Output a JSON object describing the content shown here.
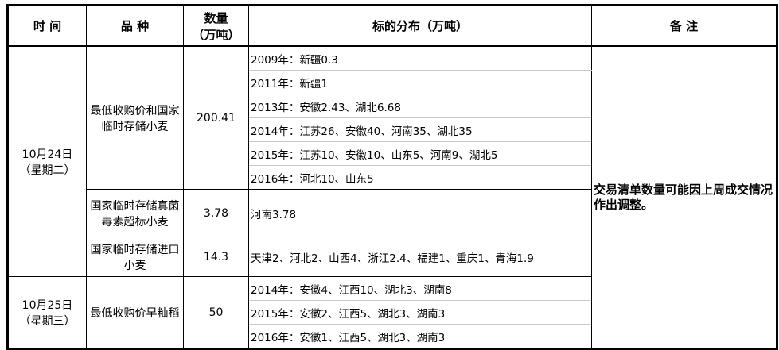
{
  "headers": {
    "time": "时 间",
    "variety": "品 种",
    "qty": "数量\n（万吨）",
    "dist": "标的分布（万吨）",
    "note": "备 注"
  },
  "groups": [
    {
      "date": "10月24日",
      "weekday": "（星期二）",
      "items": [
        {
          "variety": "最低收购价和国家临时存储小麦",
          "qty": "200.41",
          "dist": [
            "2009年：新疆0.3",
            "2011年：新疆1",
            "2013年：安徽2.43、湖北6.68",
            "2014年：江苏26、安徽40、河南35、湖北35",
            "2015年：江苏10、安徽10、山东5、河南9、湖北5",
            "2016年：河北10、山东5"
          ]
        },
        {
          "variety": "国家临时存储真菌毒素超标小麦",
          "qty": "3.78",
          "dist": [
            "河南3.78"
          ]
        },
        {
          "variety": "国家临时存储进口小麦",
          "qty": "14.3",
          "dist": [
            "天津2、河北2、山西4、浙江2.4、福建1、重庆1、青海1.9"
          ]
        }
      ]
    },
    {
      "date": "10月25日",
      "weekday": "（星期三）",
      "items": [
        {
          "variety": "最低收购价早籼稻",
          "qty": "50",
          "dist": [
            "2014年：安徽4、江西10、湖北3、湖南8",
            "2015年：安徽2、江西5、湖北3、湖南3",
            "2016年：安徽1、江西5、湖北3、湖南3"
          ]
        }
      ]
    }
  ],
  "note": "  交易清单数量可能因上周成交情况作出调整。"
}
